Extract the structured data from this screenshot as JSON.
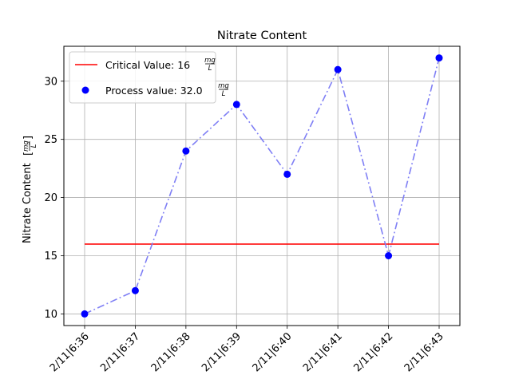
{
  "chart_data": {
    "type": "line",
    "title": "Nitrate Content",
    "ylabel": "Nitrate Content",
    "ylabel_unit": {
      "numerator": "mg",
      "denominator": "L"
    },
    "categories": [
      "2/11|6:36",
      "2/11|6:37",
      "2/11|6:38",
      "2/11|6:39",
      "2/11|6:40",
      "2/11|6:41",
      "2/11|6:42",
      "2/11|6:43"
    ],
    "ylim": [
      9,
      33
    ],
    "yticks": [
      10,
      15,
      20,
      25,
      30
    ],
    "grid": true,
    "legend_position": "upper-left",
    "series": [
      {
        "name": "Process value: 32.0",
        "unit": {
          "numerator": "mg",
          "denominator": "L"
        },
        "kind": "scatter-with-dashdot-line",
        "values": [
          10,
          12,
          24,
          28,
          22,
          31,
          15,
          32
        ],
        "marker_color": "#0000ff",
        "line_color": "#7f7ff5"
      },
      {
        "name": "Critical Value: 16",
        "unit": {
          "numerator": "mg",
          "denominator": "L"
        },
        "kind": "line",
        "values": [
          16,
          16,
          16,
          16,
          16,
          16,
          16,
          16
        ],
        "line_color": "#ff0000"
      }
    ]
  }
}
